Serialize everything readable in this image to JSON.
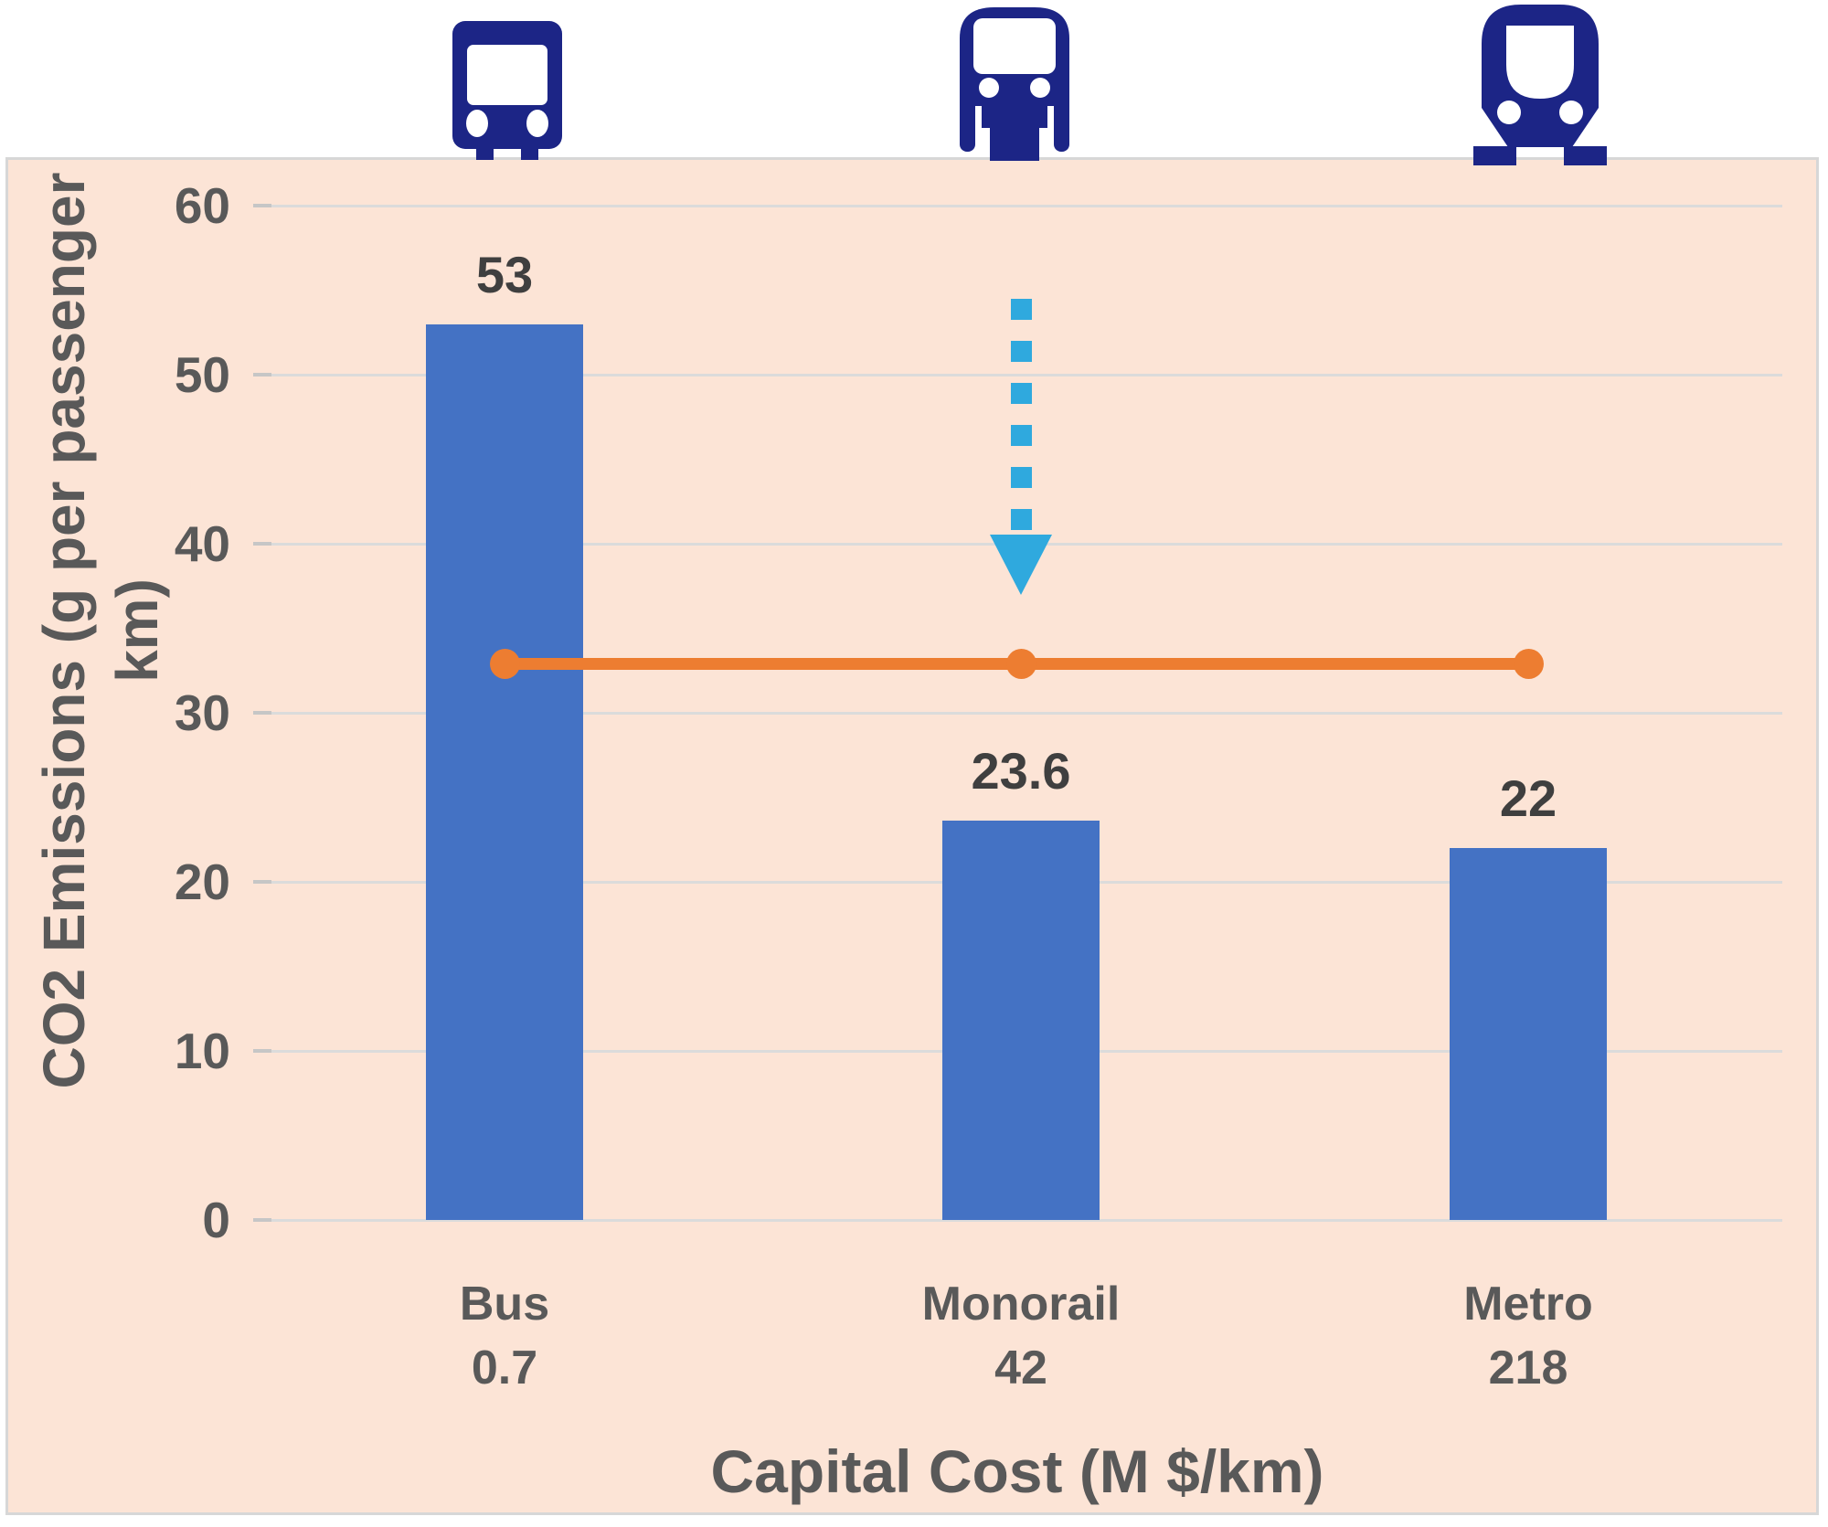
{
  "colors": {
    "panel_bg": "#FCE4D6",
    "bar": "#4472C4",
    "line": "#ED7D31",
    "arrow": "#2FA9DE",
    "icon_navy": "#1C2586",
    "grid": "#DBDBDB",
    "tick_text": "#595959",
    "value_text": "#3F3F3F",
    "title_text": "#595959"
  },
  "icons": [
    "bus-icon",
    "monorail-icon",
    "metro-icon"
  ],
  "chart_data": {
    "type": "bar",
    "title": "",
    "categories": [
      "Bus",
      "Monorail",
      "Metro"
    ],
    "category_sublabels": [
      "0.7",
      "42",
      "218"
    ],
    "series": [
      {
        "name": "CO2 emissions",
        "type": "bar",
        "values": [
          53,
          23.6,
          22
        ],
        "labels": [
          "53",
          "23.6",
          "22"
        ],
        "color": "#4472C4"
      },
      {
        "name": "reference-line",
        "type": "line",
        "values": [
          32.9,
          32.9,
          32.9
        ],
        "color": "#ED7D31",
        "marker": "circle"
      }
    ],
    "annotation": {
      "type": "dashed-down-arrow",
      "x_category": "Monorail",
      "y_from": 54.5,
      "y_to": 37,
      "color": "#2FA9DE"
    },
    "xlabel": "Capital Cost (M $/km)",
    "ylabel": "CO2 Emissions (g per passenger km)",
    "ylabel_lines": [
      "CO2 Emissions (g per passenger",
      "km)"
    ],
    "ylim": [
      0,
      60
    ],
    "yticks": [
      0,
      10,
      20,
      30,
      40,
      50,
      60
    ],
    "grid": true,
    "legend": "none"
  }
}
